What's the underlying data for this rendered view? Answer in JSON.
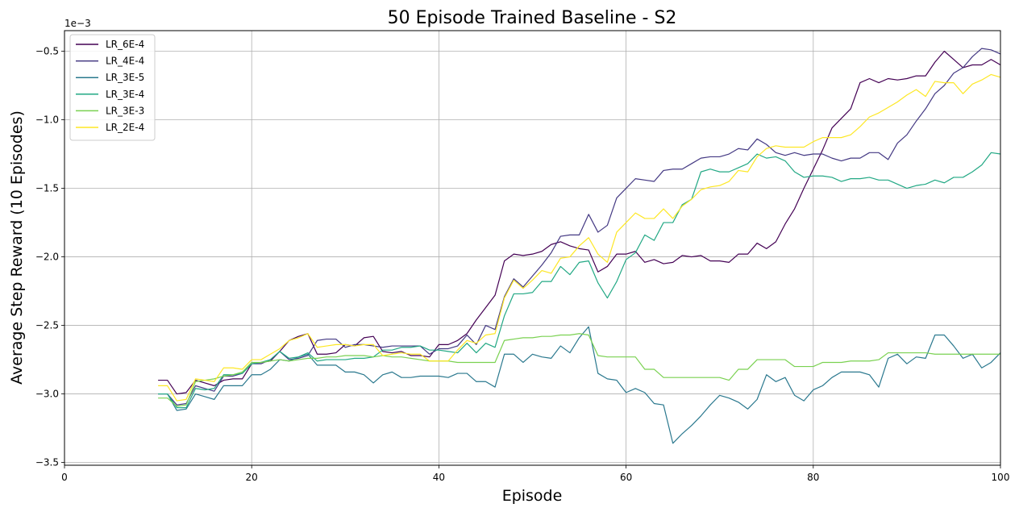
{
  "chart_data": {
    "type": "line",
    "title": "50 Episode Trained Baseline - S2",
    "xlabel": "Episode",
    "ylabel": "Average Step Reward (10 Episodes)",
    "offset_label": "1e−3",
    "xlim": [
      0,
      100
    ],
    "ylim": [
      -3.52,
      -0.35
    ],
    "xticks": [
      0,
      20,
      40,
      60,
      80,
      100
    ],
    "xtick_labels": [
      "0",
      "20",
      "40",
      "60",
      "80",
      "100"
    ],
    "yticks": [
      -3.5,
      -3.0,
      -2.5,
      -2.0,
      -1.5,
      -1.0,
      -0.5
    ],
    "ytick_labels": [
      "−3.5",
      "−3.0",
      "−2.5",
      "−2.0",
      "−1.5",
      "−1.0",
      "−0.5"
    ],
    "grid": true,
    "legend_position": "top-left",
    "x": [
      10,
      11,
      12,
      13,
      14,
      15,
      16,
      17,
      18,
      19,
      20,
      21,
      22,
      23,
      24,
      25,
      26,
      27,
      28,
      29,
      30,
      31,
      32,
      33,
      34,
      35,
      36,
      37,
      38,
      39,
      40,
      41,
      42,
      43,
      44,
      45,
      46,
      47,
      48,
      49,
      50,
      51,
      52,
      53,
      54,
      55,
      56,
      57,
      58,
      59,
      60,
      61,
      62,
      63,
      64,
      65,
      66,
      67,
      68,
      69,
      70,
      71,
      72,
      73,
      74,
      75,
      76,
      77,
      78,
      79,
      80,
      81,
      82,
      83,
      84,
      85,
      86,
      87,
      88,
      89,
      90,
      91,
      92,
      93,
      94,
      95,
      96,
      97,
      98,
      99,
      100
    ],
    "series": [
      {
        "name": "LR_6E-4",
        "color": "#440154",
        "values": [
          -2.9,
          -2.9,
          -3.0,
          -2.99,
          -2.9,
          -2.92,
          -2.94,
          -2.9,
          -2.89,
          -2.89,
          -2.78,
          -2.77,
          -2.76,
          -2.69,
          -2.61,
          -2.58,
          -2.56,
          -2.71,
          -2.71,
          -2.7,
          -2.64,
          -2.65,
          -2.59,
          -2.58,
          -2.69,
          -2.7,
          -2.69,
          -2.72,
          -2.72,
          -2.73,
          -2.64,
          -2.64,
          -2.61,
          -2.56,
          -2.46,
          -2.37,
          -2.28,
          -2.03,
          -1.98,
          -1.99,
          -1.98,
          -1.96,
          -1.91,
          -1.89,
          -1.92,
          -1.94,
          -1.95,
          -2.11,
          -2.07,
          -1.98,
          -1.98,
          -1.96,
          -2.04,
          -2.02,
          -2.05,
          -2.04,
          -1.99,
          -2.0,
          -1.99,
          -2.03,
          -2.03,
          -2.04,
          -1.98,
          -1.98,
          -1.9,
          -1.94,
          -1.89,
          -1.76,
          -1.65,
          -1.5,
          -1.36,
          -1.22,
          -1.06,
          -0.99,
          -0.92,
          -0.73,
          -0.7,
          -0.73,
          -0.7,
          -0.71,
          -0.7,
          -0.68,
          -0.68,
          -0.58,
          -0.5,
          -0.56,
          -0.62,
          -0.6,
          -0.6,
          -0.56,
          -0.6
        ]
      },
      {
        "name": "LR_4E-4",
        "color": "#443983",
        "values": [
          -3.0,
          -3.0,
          -3.08,
          -3.07,
          -2.94,
          -2.96,
          -2.98,
          -2.87,
          -2.87,
          -2.85,
          -2.78,
          -2.78,
          -2.75,
          -2.69,
          -2.75,
          -2.74,
          -2.72,
          -2.61,
          -2.6,
          -2.6,
          -2.66,
          -2.64,
          -2.64,
          -2.65,
          -2.66,
          -2.65,
          -2.65,
          -2.65,
          -2.65,
          -2.71,
          -2.67,
          -2.67,
          -2.65,
          -2.57,
          -2.64,
          -2.5,
          -2.53,
          -2.29,
          -2.16,
          -2.22,
          -2.14,
          -2.06,
          -1.97,
          -1.85,
          -1.84,
          -1.84,
          -1.69,
          -1.82,
          -1.77,
          -1.57,
          -1.5,
          -1.43,
          -1.44,
          -1.45,
          -1.37,
          -1.36,
          -1.36,
          -1.32,
          -1.28,
          -1.27,
          -1.27,
          -1.25,
          -1.21,
          -1.22,
          -1.14,
          -1.18,
          -1.24,
          -1.26,
          -1.24,
          -1.26,
          -1.25,
          -1.25,
          -1.28,
          -1.3,
          -1.28,
          -1.28,
          -1.24,
          -1.24,
          -1.29,
          -1.17,
          -1.11,
          -1.01,
          -0.92,
          -0.81,
          -0.75,
          -0.66,
          -0.62,
          -0.54,
          -0.48,
          -0.49,
          -0.52
        ]
      },
      {
        "name": "LR_3E-5",
        "color": "#2a788e",
        "values": [
          -3.0,
          -3.0,
          -3.12,
          -3.11,
          -3.0,
          -3.02,
          -3.04,
          -2.94,
          -2.94,
          -2.94,
          -2.86,
          -2.86,
          -2.82,
          -2.75,
          -2.76,
          -2.73,
          -2.71,
          -2.79,
          -2.79,
          -2.79,
          -2.84,
          -2.84,
          -2.86,
          -2.92,
          -2.86,
          -2.84,
          -2.88,
          -2.88,
          -2.87,
          -2.87,
          -2.87,
          -2.88,
          -2.85,
          -2.85,
          -2.91,
          -2.91,
          -2.95,
          -2.71,
          -2.71,
          -2.77,
          -2.71,
          -2.73,
          -2.74,
          -2.65,
          -2.7,
          -2.59,
          -2.51,
          -2.85,
          -2.89,
          -2.9,
          -2.99,
          -2.96,
          -2.99,
          -3.07,
          -3.08,
          -3.36,
          -3.29,
          -3.23,
          -3.16,
          -3.08,
          -3.01,
          -3.03,
          -3.06,
          -3.11,
          -3.04,
          -2.86,
          -2.91,
          -2.88,
          -3.01,
          -3.05,
          -2.97,
          -2.94,
          -2.88,
          -2.84,
          -2.84,
          -2.84,
          -2.86,
          -2.95,
          -2.74,
          -2.71,
          -2.78,
          -2.73,
          -2.74,
          -2.57,
          -2.57,
          -2.65,
          -2.74,
          -2.71,
          -2.81,
          -2.77,
          -2.7
        ]
      },
      {
        "name": "LR_3E-4",
        "color": "#22a884",
        "values": [
          -3.0,
          -3.0,
          -3.1,
          -3.1,
          -2.96,
          -2.97,
          -2.96,
          -2.86,
          -2.86,
          -2.85,
          -2.78,
          -2.77,
          -2.75,
          -2.69,
          -2.74,
          -2.73,
          -2.7,
          -2.76,
          -2.75,
          -2.75,
          -2.75,
          -2.74,
          -2.74,
          -2.73,
          -2.68,
          -2.68,
          -2.66,
          -2.66,
          -2.65,
          -2.68,
          -2.68,
          -2.69,
          -2.7,
          -2.63,
          -2.7,
          -2.63,
          -2.66,
          -2.43,
          -2.27,
          -2.27,
          -2.26,
          -2.18,
          -2.18,
          -2.07,
          -2.13,
          -2.04,
          -2.03,
          -2.19,
          -2.3,
          -2.18,
          -2.02,
          -1.97,
          -1.84,
          -1.88,
          -1.75,
          -1.75,
          -1.62,
          -1.58,
          -1.38,
          -1.36,
          -1.38,
          -1.38,
          -1.35,
          -1.32,
          -1.25,
          -1.28,
          -1.27,
          -1.3,
          -1.38,
          -1.42,
          -1.41,
          -1.41,
          -1.42,
          -1.45,
          -1.43,
          -1.43,
          -1.42,
          -1.44,
          -1.44,
          -1.47,
          -1.5,
          -1.48,
          -1.47,
          -1.44,
          -1.46,
          -1.42,
          -1.42,
          -1.38,
          -1.33,
          -1.24,
          -1.25
        ]
      },
      {
        "name": "LR_3E-3",
        "color": "#7ad151",
        "values": [
          -3.03,
          -3.03,
          -3.09,
          -3.08,
          -2.91,
          -2.9,
          -2.89,
          -2.87,
          -2.86,
          -2.84,
          -2.77,
          -2.77,
          -2.76,
          -2.75,
          -2.76,
          -2.75,
          -2.74,
          -2.74,
          -2.73,
          -2.73,
          -2.72,
          -2.72,
          -2.72,
          -2.73,
          -2.72,
          -2.73,
          -2.73,
          -2.74,
          -2.75,
          -2.76,
          -2.76,
          -2.76,
          -2.77,
          -2.77,
          -2.77,
          -2.77,
          -2.77,
          -2.61,
          -2.6,
          -2.59,
          -2.59,
          -2.58,
          -2.58,
          -2.57,
          -2.57,
          -2.56,
          -2.57,
          -2.72,
          -2.73,
          -2.73,
          -2.73,
          -2.73,
          -2.82,
          -2.82,
          -2.88,
          -2.88,
          -2.88,
          -2.88,
          -2.88,
          -2.88,
          -2.88,
          -2.9,
          -2.82,
          -2.82,
          -2.75,
          -2.75,
          -2.75,
          -2.75,
          -2.8,
          -2.8,
          -2.8,
          -2.77,
          -2.77,
          -2.77,
          -2.76,
          -2.76,
          -2.76,
          -2.75,
          -2.7,
          -2.7,
          -2.7,
          -2.7,
          -2.7,
          -2.71,
          -2.71,
          -2.71,
          -2.71,
          -2.71,
          -2.71,
          -2.71,
          -2.71
        ]
      },
      {
        "name": "LR_2E-4",
        "color": "#fde725",
        "values": [
          -2.94,
          -2.94,
          -3.05,
          -3.04,
          -2.89,
          -2.9,
          -2.91,
          -2.81,
          -2.81,
          -2.82,
          -2.75,
          -2.75,
          -2.71,
          -2.67,
          -2.61,
          -2.59,
          -2.56,
          -2.66,
          -2.65,
          -2.64,
          -2.64,
          -2.65,
          -2.64,
          -2.64,
          -2.72,
          -2.71,
          -2.7,
          -2.71,
          -2.71,
          -2.76,
          -2.76,
          -2.76,
          -2.68,
          -2.61,
          -2.63,
          -2.57,
          -2.56,
          -2.3,
          -2.17,
          -2.23,
          -2.17,
          -2.1,
          -2.12,
          -2.01,
          -2.0,
          -1.92,
          -1.86,
          -1.98,
          -2.04,
          -1.82,
          -1.75,
          -1.68,
          -1.72,
          -1.72,
          -1.65,
          -1.72,
          -1.63,
          -1.58,
          -1.51,
          -1.49,
          -1.48,
          -1.45,
          -1.37,
          -1.38,
          -1.27,
          -1.21,
          -1.19,
          -1.2,
          -1.2,
          -1.2,
          -1.16,
          -1.13,
          -1.13,
          -1.13,
          -1.11,
          -1.05,
          -0.98,
          -0.95,
          -0.91,
          -0.87,
          -0.82,
          -0.78,
          -0.83,
          -0.72,
          -0.73,
          -0.73,
          -0.81,
          -0.74,
          -0.71,
          -0.67,
          -0.69
        ]
      }
    ]
  }
}
